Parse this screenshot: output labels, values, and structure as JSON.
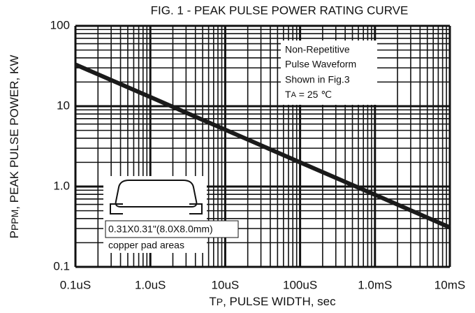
{
  "chart_data": {
    "type": "line",
    "title": "FIG. 1 - PEAK PULSE POWER RATING CURVE",
    "x_label": [
      "T",
      "P",
      ", PULSE WIDTH, sec"
    ],
    "y_label": [
      "P",
      "PPM",
      ", PEAK PULSE POWER, KW"
    ],
    "x": [
      1e-07,
      1e-06,
      1e-05,
      0.0001,
      0.001,
      0.01
    ],
    "values": [
      33,
      13,
      5.1,
      2.0,
      0.79,
      0.31
    ],
    "color": "#1a1a1a",
    "log_x": true,
    "log_y": true,
    "grid": true,
    "xlim": [
      1e-07,
      0.01
    ],
    "ylim": [
      0.1,
      100
    ],
    "xticks": [
      {
        "value": 1e-07,
        "label": "0.1uS"
      },
      {
        "value": 1e-06,
        "label": "1.0uS"
      },
      {
        "value": 1e-05,
        "label": "10uS"
      },
      {
        "value": 0.0001,
        "label": "100uS"
      },
      {
        "value": 0.001,
        "label": "1.0mS"
      },
      {
        "value": 0.01,
        "label": "10mS"
      }
    ],
    "yticks": [
      0.1,
      {
        "value": 1,
        "label": "1.0"
      },
      10,
      100
    ],
    "x_minor_ticks": [
      2e-07,
      3e-07,
      4e-07,
      5e-07,
      6e-07,
      7e-07,
      8e-07,
      9e-07,
      2e-06,
      3e-06,
      4e-06,
      5e-06,
      6e-06,
      7e-06,
      8e-06,
      9e-06,
      2e-05,
      3e-05,
      4e-05,
      5e-05,
      6e-05,
      7e-05,
      8e-05,
      9e-05,
      0.0002,
      0.0003,
      0.0004,
      0.0005,
      0.0006,
      0.0007,
      0.0008,
      0.0009,
      0.002,
      0.003,
      0.004,
      0.005,
      0.006,
      0.007,
      0.008,
      0.009
    ],
    "y_minor_ticks": [
      0.2,
      0.3,
      0.4,
      0.5,
      0.6,
      0.7,
      0.8,
      0.9,
      2,
      3,
      4,
      5,
      6,
      7,
      8,
      9,
      20,
      30,
      40,
      50,
      60,
      70,
      80,
      90
    ],
    "annotation": [
      "Non-Repetitive",
      "Pulse Waveform",
      "Shown in Fig.3"
    ],
    "temperature": [
      "T",
      "A",
      " = 25 ℃"
    ],
    "inset_labels": [
      "0.31X0.31\"(8.0X8.0mm)",
      "copper pad areas"
    ]
  }
}
